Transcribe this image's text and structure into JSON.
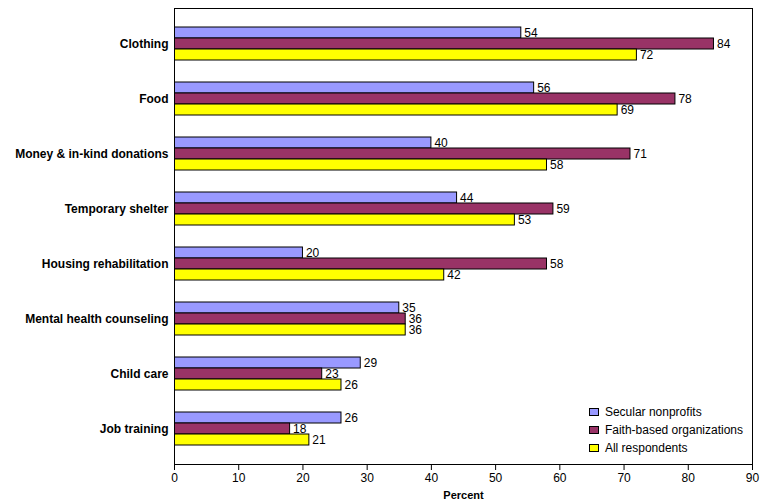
{
  "chart_data": {
    "type": "bar",
    "orientation": "horizontal",
    "categories": [
      "Clothing",
      "Food",
      "Money & in-kind donations",
      "Temporary shelter",
      "Housing rehabilitation",
      "Mental health counseling",
      "Child care",
      "Job training"
    ],
    "series": [
      {
        "name": "Secular nonprofits",
        "color": "#9999ff",
        "values": [
          54,
          56,
          40,
          44,
          20,
          35,
          29,
          26
        ]
      },
      {
        "name": "Faith-based organizations",
        "color": "#993366",
        "values": [
          84,
          78,
          71,
          59,
          58,
          36,
          23,
          18
        ]
      },
      {
        "name": "All respondents",
        "color": "#ffff00",
        "values": [
          72,
          69,
          58,
          53,
          42,
          36,
          26,
          21
        ]
      }
    ],
    "x_label": "Percent",
    "xlim": [
      0,
      90
    ],
    "xticks": [
      0,
      10,
      20,
      30,
      40,
      50,
      60,
      70,
      80,
      90
    ],
    "data_labels": true,
    "legend": "lower right",
    "grid": false
  }
}
